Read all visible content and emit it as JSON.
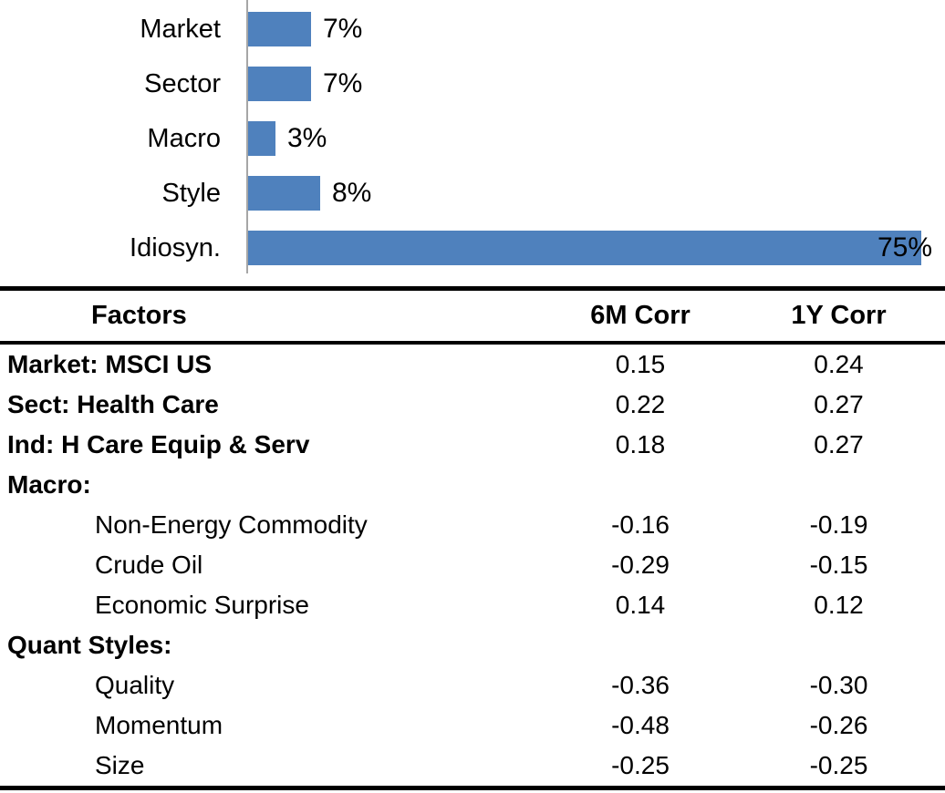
{
  "chart_data": {
    "type": "bar",
    "orientation": "horizontal",
    "title": "",
    "categories": [
      "Market",
      "Sector",
      "Macro",
      "Style",
      "Idiosyn."
    ],
    "values": [
      7,
      7,
      3,
      8,
      75
    ],
    "value_labels": [
      "7%",
      "7%",
      "3%",
      "8%",
      "75%"
    ],
    "xlim": [
      0,
      76
    ],
    "grid": false,
    "legend": "none",
    "bar_color": "#4f81bd",
    "axis_color": "#a6a6a6"
  },
  "table": {
    "headers": [
      "Factors",
      "6M Corr",
      "1Y Corr"
    ],
    "rows": [
      {
        "factor": "Market: MSCI US",
        "sub": false,
        "corr_6m": "0.15",
        "corr_1y": "0.24"
      },
      {
        "factor": "Sect: Health Care",
        "sub": false,
        "corr_6m": "0.22",
        "corr_1y": "0.27"
      },
      {
        "factor": "Ind: H Care Equip & Serv",
        "sub": false,
        "corr_6m": "0.18",
        "corr_1y": "0.27"
      },
      {
        "factor": "Macro:",
        "sub": false,
        "corr_6m": "",
        "corr_1y": ""
      },
      {
        "factor": "Non-Energy Commodity",
        "sub": true,
        "corr_6m": "-0.16",
        "corr_1y": "-0.19"
      },
      {
        "factor": "Crude Oil",
        "sub": true,
        "corr_6m": "-0.29",
        "corr_1y": "-0.15"
      },
      {
        "factor": "Economic Surprise",
        "sub": true,
        "corr_6m": "0.14",
        "corr_1y": "0.12"
      },
      {
        "factor": "Quant Styles:",
        "sub": false,
        "corr_6m": "",
        "corr_1y": ""
      },
      {
        "factor": "Quality",
        "sub": true,
        "corr_6m": "-0.36",
        "corr_1y": "-0.30"
      },
      {
        "factor": "Momentum",
        "sub": true,
        "corr_6m": "-0.48",
        "corr_1y": "-0.26"
      },
      {
        "factor": "Size",
        "sub": true,
        "corr_6m": "-0.25",
        "corr_1y": "-0.25"
      }
    ]
  }
}
